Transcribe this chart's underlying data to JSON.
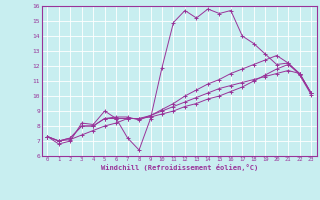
{
  "xlabel": "Windchill (Refroidissement éolien,°C)",
  "ylabel": "",
  "xlim": [
    -0.5,
    23.5
  ],
  "ylim": [
    6,
    16
  ],
  "xticks": [
    0,
    1,
    2,
    3,
    4,
    5,
    6,
    7,
    8,
    9,
    10,
    11,
    12,
    13,
    14,
    15,
    16,
    17,
    18,
    19,
    20,
    21,
    22,
    23
  ],
  "yticks": [
    6,
    7,
    8,
    9,
    10,
    11,
    12,
    13,
    14,
    15,
    16
  ],
  "bg_color": "#c8eef0",
  "line_color": "#993399",
  "grid_color": "#ffffff",
  "series": [
    [
      7.3,
      6.8,
      7.0,
      8.2,
      8.1,
      9.0,
      8.5,
      7.2,
      6.4,
      8.5,
      11.9,
      14.9,
      15.7,
      15.2,
      15.8,
      15.5,
      15.7,
      14.0,
      13.5,
      12.8,
      12.1,
      12.2,
      11.4,
      10.1
    ],
    [
      7.3,
      7.0,
      7.1,
      7.4,
      7.7,
      8.0,
      8.2,
      8.5,
      8.5,
      8.7,
      9.0,
      9.3,
      9.6,
      9.9,
      10.2,
      10.5,
      10.7,
      10.9,
      11.1,
      11.3,
      11.5,
      11.7,
      11.5,
      10.2
    ],
    [
      7.3,
      7.0,
      7.2,
      8.0,
      8.0,
      8.5,
      8.5,
      8.5,
      8.5,
      8.6,
      8.8,
      9.0,
      9.3,
      9.5,
      9.8,
      10.0,
      10.3,
      10.6,
      11.0,
      11.4,
      11.8,
      12.1,
      11.5,
      10.2
    ],
    [
      7.3,
      7.0,
      7.2,
      8.0,
      8.0,
      8.5,
      8.6,
      8.6,
      8.4,
      8.7,
      9.1,
      9.5,
      10.0,
      10.4,
      10.8,
      11.1,
      11.5,
      11.8,
      12.1,
      12.4,
      12.7,
      12.2,
      11.5,
      10.2
    ]
  ]
}
